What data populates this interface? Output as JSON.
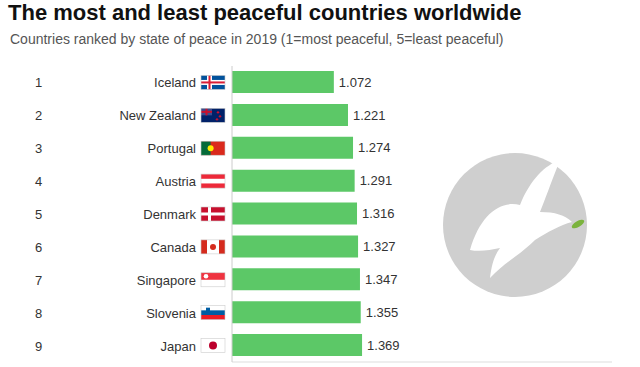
{
  "chart_data": {
    "type": "bar",
    "title": "The most and least peaceful countries worldwide",
    "subtitle": "Countries ranked by state of peace in 2019 (1=most peaceful, 5=least peaceful)",
    "orientation": "horizontal",
    "categories": [
      "Iceland",
      "New Zealand",
      "Portugal",
      "Austria",
      "Denmark",
      "Canada",
      "Singapore",
      "Slovenia",
      "Japan"
    ],
    "ranks": [
      1,
      2,
      3,
      4,
      5,
      6,
      7,
      8,
      9
    ],
    "values": [
      1.072,
      1.221,
      1.274,
      1.291,
      1.316,
      1.327,
      1.347,
      1.355,
      1.369
    ],
    "color": "#5cc867",
    "xlim": [
      0,
      4
    ],
    "data_labels": true,
    "tick_labels": "y",
    "grid": false
  }
}
